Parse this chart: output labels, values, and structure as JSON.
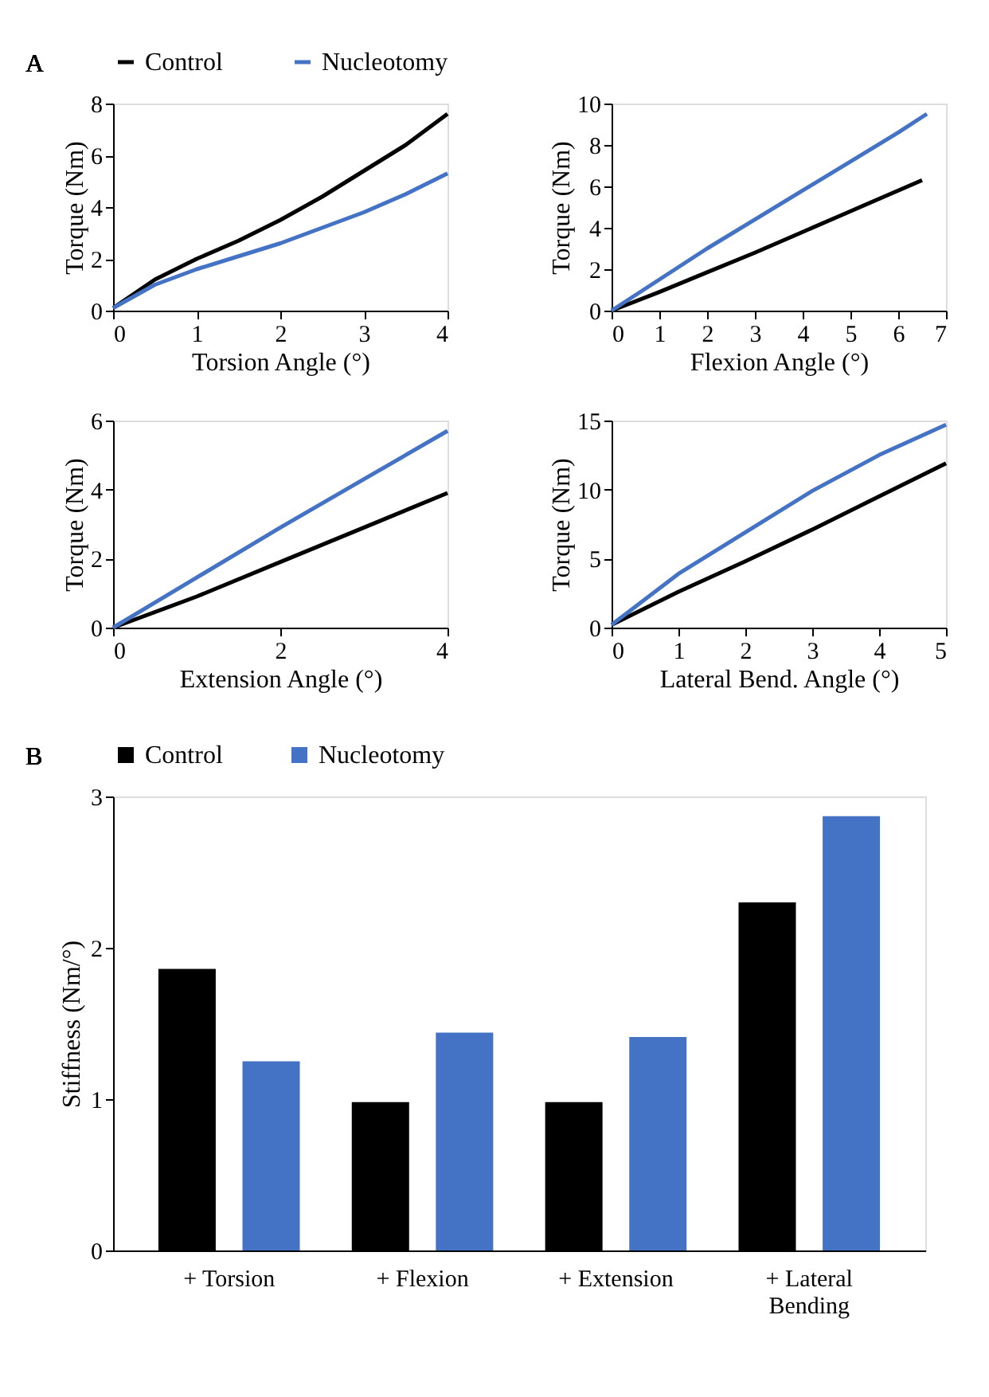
{
  "chart_data": [
    {
      "type": "line",
      "annotations": [
        "A"
      ],
      "xlabel": "Torsion Angle (°)",
      "ylabel": "Torque (Nm)",
      "xlim": [
        0,
        4
      ],
      "xticks": [
        0,
        1,
        2,
        3,
        4
      ],
      "ylim": [
        0,
        8
      ],
      "yticks": [
        0,
        2,
        4,
        6,
        8
      ],
      "grid": false,
      "legend": "top",
      "line_style": "solid",
      "marker": "none",
      "series": [
        {
          "name": "Control",
          "color": "#000000",
          "x": [
            0,
            0.5,
            1,
            1.5,
            2,
            2.5,
            3,
            3.5,
            4
          ],
          "values": [
            0.1,
            1.2,
            2.0,
            2.7,
            3.5,
            4.4,
            5.4,
            6.4,
            7.6
          ]
        },
        {
          "name": "Nucleotomy",
          "color": "#4472c4",
          "x": [
            0,
            0.5,
            1,
            1.5,
            2,
            2.5,
            3,
            3.5,
            4
          ],
          "values": [
            0.1,
            1.0,
            1.6,
            2.1,
            2.6,
            3.2,
            3.8,
            4.5,
            5.3
          ]
        }
      ]
    },
    {
      "type": "line",
      "xlabel": "Flexion Angle (°)",
      "ylabel": "Torque (Nm)",
      "xlim": [
        0,
        7
      ],
      "xticks": [
        0,
        1,
        2,
        3,
        4,
        5,
        6,
        7
      ],
      "ylim": [
        0,
        10
      ],
      "yticks": [
        0,
        2,
        4,
        6,
        8,
        10
      ],
      "grid": false,
      "line_style": "solid",
      "marker": "none",
      "series": [
        {
          "color": "#000000",
          "x": [
            0,
            1,
            2,
            3,
            4,
            5,
            6.5
          ],
          "values": [
            0,
            0.9,
            1.85,
            2.8,
            3.8,
            4.8,
            6.3
          ]
        },
        {
          "color": "#4472c4",
          "x": [
            0,
            1,
            2,
            3,
            4,
            5,
            6,
            6.6
          ],
          "values": [
            0,
            1.5,
            3.0,
            4.4,
            5.8,
            7.2,
            8.6,
            9.5
          ]
        }
      ]
    },
    {
      "type": "line",
      "xlabel": "Extension Angle (°)",
      "ylabel": "Torque (Nm)",
      "xlim": [
        0,
        4
      ],
      "xticks": [
        0,
        2,
        4
      ],
      "ylim": [
        0,
        6
      ],
      "yticks": [
        0,
        2,
        4,
        6
      ],
      "grid": false,
      "line_style": "solid",
      "marker": "none",
      "series": [
        {
          "color": "#000000",
          "x": [
            0,
            1,
            2,
            3,
            4
          ],
          "values": [
            0,
            0.9,
            1.9,
            2.9,
            3.9
          ]
        },
        {
          "color": "#4472c4",
          "x": [
            0,
            1,
            2,
            3,
            4
          ],
          "values": [
            0,
            1.45,
            2.9,
            4.3,
            5.7
          ]
        }
      ]
    },
    {
      "type": "line",
      "xlabel": "Lateral Bend. Angle (°)",
      "ylabel": "Torque (Nm)",
      "xlim": [
        0,
        5
      ],
      "xticks": [
        0,
        1,
        2,
        3,
        4,
        5
      ],
      "ylim": [
        0,
        15
      ],
      "yticks": [
        0,
        5,
        10,
        15
      ],
      "grid": false,
      "line_style": "solid",
      "marker": "none",
      "series": [
        {
          "color": "#000000",
          "x": [
            0,
            1,
            2,
            3,
            4,
            5
          ],
          "values": [
            0.2,
            2.6,
            4.8,
            7.1,
            9.5,
            11.9
          ]
        },
        {
          "color": "#4472c4",
          "x": [
            0,
            1,
            2,
            3,
            4,
            5
          ],
          "values": [
            0.2,
            3.9,
            6.9,
            9.9,
            12.5,
            14.7
          ]
        }
      ]
    },
    {
      "type": "bar",
      "annotations": [
        "B"
      ],
      "ylabel": "Stiffness (Nm/°)",
      "categories": [
        "+ Torsion",
        "+ Flexion",
        "+ Extension",
        "+ Lateral Bending"
      ],
      "ylim": [
        0,
        3
      ],
      "yticks": [
        0,
        1,
        2,
        3
      ],
      "grid": false,
      "legend": "top",
      "series": [
        {
          "name": "Control",
          "color": "#000000",
          "values": [
            1.86,
            0.98,
            0.98,
            2.3
          ]
        },
        {
          "name": "Nucleotomy",
          "color": "#4472c4",
          "values": [
            1.25,
            1.44,
            1.41,
            2.87
          ]
        }
      ]
    }
  ]
}
